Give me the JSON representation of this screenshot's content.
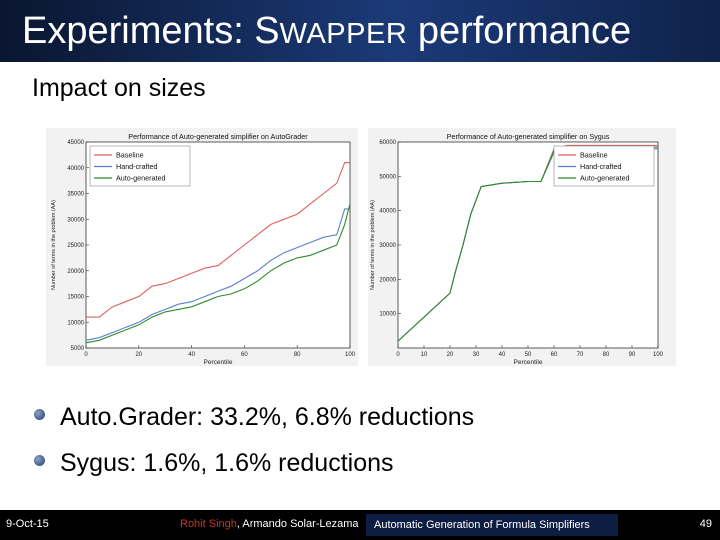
{
  "slide": {
    "title_prefix": "Experiments: S",
    "title_smallcaps": "WAPPER",
    "title_suffix": " performance",
    "subtitle": "Impact on sizes"
  },
  "bullets": [
    {
      "text": "Auto.Grader: 33.2%, 6.8% reductions"
    },
    {
      "text": "Sygus: 1.6%, 1.6% reductions"
    }
  ],
  "footer": {
    "date": "9-Oct-15",
    "author_highlight": "Rohit Singh",
    "author_rest": ", Armando Solar-Lezama",
    "paper": "Automatic Generation of Formula Simplifiers",
    "page": "49"
  },
  "colors": {
    "baseline": "#e06060",
    "hand_crafted": "#5a7fd0",
    "auto_generated": "#2e8b2e",
    "title_bar": "#1b3a78"
  },
  "chart_data": [
    {
      "type": "line",
      "title": "Performance of Auto-generated simplifier on AutoGrader",
      "xlabel": "Percentile",
      "ylabel": "Number of terms in the problem (AA)",
      "xlim": [
        0,
        100
      ],
      "ylim": [
        5000,
        45000
      ],
      "xticks": [
        0,
        20,
        40,
        60,
        80,
        100
      ],
      "yticks": [
        5000,
        10000,
        15000,
        20000,
        25000,
        30000,
        35000,
        40000,
        45000
      ],
      "legend_position": "top-left",
      "grid": false,
      "series": [
        {
          "name": "Baseline",
          "color": "#e06060",
          "x": [
            0,
            5,
            10,
            15,
            20,
            25,
            30,
            35,
            40,
            45,
            50,
            55,
            60,
            65,
            70,
            75,
            80,
            85,
            90,
            95,
            98,
            100
          ],
          "y": [
            11000,
            11000,
            13000,
            14000,
            15000,
            17000,
            17500,
            18500,
            19500,
            20500,
            21000,
            23000,
            25000,
            27000,
            29000,
            30000,
            31000,
            33000,
            35000,
            37000,
            41000,
            41000
          ]
        },
        {
          "name": "Hand-crafted",
          "color": "#5a7fd0",
          "x": [
            0,
            5,
            10,
            15,
            20,
            25,
            30,
            35,
            40,
            45,
            50,
            55,
            60,
            65,
            70,
            75,
            80,
            85,
            90,
            95,
            98,
            100
          ],
          "y": [
            6500,
            7000,
            8000,
            9000,
            10000,
            11500,
            12500,
            13500,
            14000,
            15000,
            16000,
            17000,
            18500,
            20000,
            22000,
            23500,
            24500,
            25500,
            26500,
            27000,
            32000,
            32000
          ]
        },
        {
          "name": "Auto-generated",
          "color": "#2e8b2e",
          "x": [
            0,
            5,
            10,
            15,
            20,
            25,
            30,
            35,
            40,
            45,
            50,
            55,
            60,
            65,
            70,
            75,
            80,
            85,
            90,
            95,
            98,
            100
          ],
          "y": [
            6000,
            6500,
            7500,
            8500,
            9500,
            11000,
            12000,
            12500,
            13000,
            14000,
            15000,
            15500,
            16500,
            18000,
            20000,
            21500,
            22500,
            23000,
            24000,
            25000,
            29000,
            33000
          ]
        }
      ]
    },
    {
      "type": "line",
      "title": "Performance of Auto-generated simplifier on Sygus",
      "xlabel": "Percentile",
      "ylabel": "Number of terms in the problem (AA)",
      "xlim": [
        0,
        100
      ],
      "ylim": [
        0,
        60000
      ],
      "xticks": [
        0,
        10,
        20,
        30,
        40,
        50,
        60,
        70,
        80,
        90,
        100
      ],
      "yticks": [
        10000,
        20000,
        30000,
        40000,
        50000,
        60000
      ],
      "legend_position": "top-right",
      "grid": false,
      "series": [
        {
          "name": "Baseline",
          "color": "#e06060",
          "x": [
            0,
            5,
            10,
            15,
            20,
            22,
            25,
            28,
            32,
            40,
            50,
            55,
            60,
            65,
            70,
            80,
            90,
            100
          ],
          "y": [
            2000,
            5500,
            9000,
            12500,
            16000,
            22000,
            30000,
            39000,
            47000,
            48000,
            48500,
            48500,
            58000,
            59000,
            59000,
            59000,
            59000,
            59000
          ]
        },
        {
          "name": "Hand-crafted",
          "color": "#5a7fd0",
          "x": [
            0,
            5,
            10,
            15,
            20,
            22,
            25,
            28,
            32,
            40,
            50,
            55,
            60,
            65,
            70,
            80,
            90,
            100
          ],
          "y": [
            2000,
            5500,
            9000,
            12500,
            16000,
            22000,
            30000,
            39000,
            47000,
            48000,
            48500,
            48500,
            57000,
            58000,
            58000,
            58000,
            58000,
            58000
          ]
        },
        {
          "name": "Auto-generated",
          "color": "#2e8b2e",
          "x": [
            0,
            5,
            10,
            15,
            20,
            22,
            25,
            28,
            32,
            40,
            50,
            55,
            60,
            65,
            70,
            80,
            90,
            100
          ],
          "y": [
            2000,
            5500,
            9000,
            12500,
            16000,
            22000,
            30000,
            39000,
            47000,
            48000,
            48500,
            48500,
            57500,
            58500,
            58500,
            58500,
            58500,
            58500
          ]
        }
      ]
    }
  ]
}
